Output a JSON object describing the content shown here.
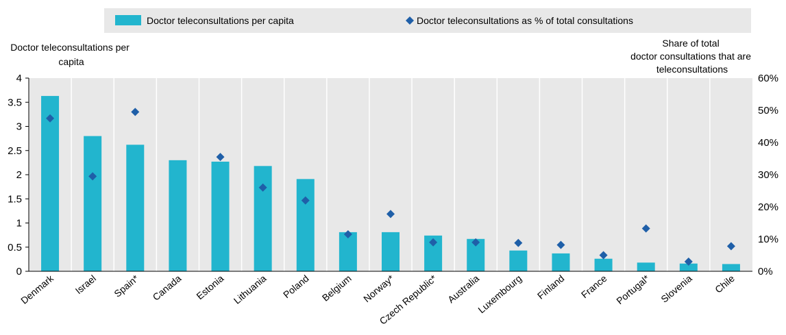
{
  "chart_data": {
    "type": "bar",
    "categories": [
      "Denmark",
      "Israel",
      "Spain*",
      "Canada",
      "Estonia",
      "Lithuania",
      "Poland",
      "Belgium",
      "Norway*",
      "Czech Republic*",
      "Australia",
      "Luxembourg",
      "Finland",
      "France",
      "Portugal*",
      "Slovenia",
      "Chile"
    ],
    "series": [
      {
        "name": "Doctor teleconsultations per capita",
        "type": "bar",
        "axis": "left",
        "color": "#22b5ce",
        "values": [
          3.63,
          2.8,
          2.62,
          2.3,
          2.27,
          2.18,
          1.91,
          0.81,
          0.81,
          0.74,
          0.67,
          0.43,
          0.37,
          0.26,
          0.18,
          0.16,
          0.15
        ]
      },
      {
        "name": "Doctor teleconsultations as % of total consultations",
        "type": "scatter",
        "marker": "diamond",
        "axis": "right",
        "color": "#1f5fa8",
        "values": [
          47.5,
          29.5,
          49.5,
          null,
          35.5,
          26.0,
          22.0,
          11.5,
          17.8,
          9.0,
          9.0,
          8.8,
          8.2,
          5.0,
          13.3,
          3.0,
          7.8
        ]
      }
    ],
    "ylabel": "Doctor teleconsultations per capita",
    "ylabel_right": "Share of total doctor consultations that are teleconsultations",
    "ylim": [
      0,
      4
    ],
    "yticks": [
      "0",
      "0.5",
      "1",
      "1.5",
      "2",
      "2.5",
      "3",
      "3.5",
      "4"
    ],
    "ylim_right": [
      0,
      60
    ],
    "yticks_right": [
      "0%",
      "10%",
      "20%",
      "30%",
      "40%",
      "50%",
      "60%"
    ],
    "grid": false,
    "legend": "top",
    "plot_background": "#e8e8e8"
  }
}
